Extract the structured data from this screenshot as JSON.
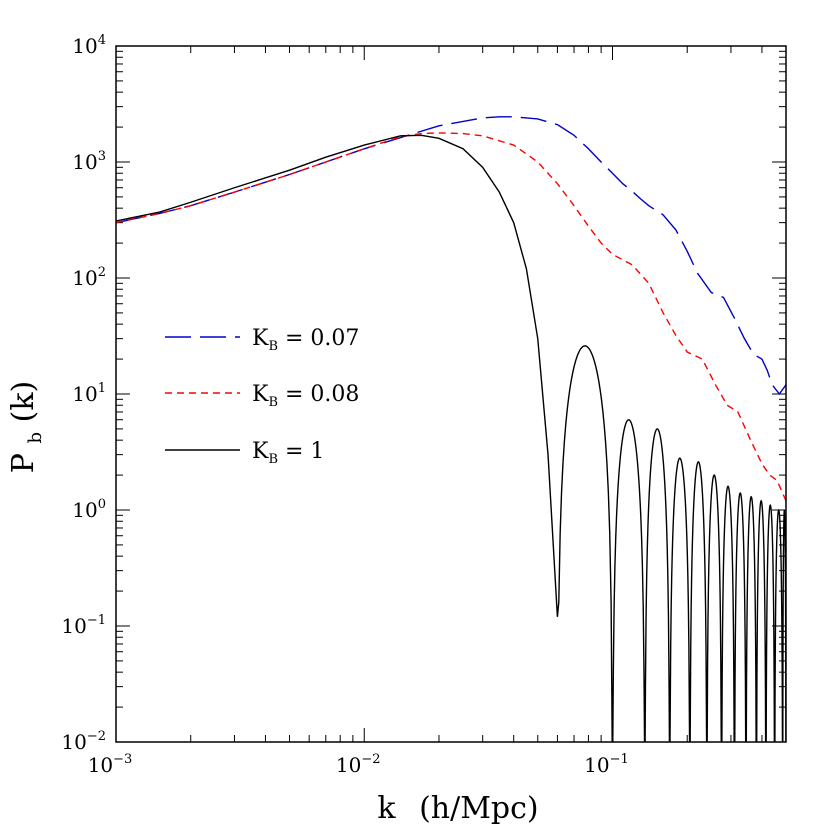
{
  "chart_data": {
    "type": "line",
    "title": "",
    "xlabel": {
      "main": "k",
      "unit": "(h/Mpc)"
    },
    "ylabel": {
      "main": "P",
      "sub": "b",
      "arg": "(k)"
    },
    "xscale": "log",
    "yscale": "log",
    "xlim": [
      0.001,
      0.5
    ],
    "ylim": [
      0.01,
      10000
    ],
    "x_ticks": [
      {
        "base": "10",
        "exp": "−3",
        "value": 0.001
      },
      {
        "base": "10",
        "exp": "−2",
        "value": 0.01
      },
      {
        "base": "10",
        "exp": "−1",
        "value": 0.1
      }
    ],
    "y_ticks": [
      {
        "base": "10",
        "exp": "−2",
        "value": 0.01
      },
      {
        "base": "10",
        "exp": "−1",
        "value": 0.1
      },
      {
        "base": "10",
        "exp": "0",
        "value": 1
      },
      {
        "base": "10",
        "exp": "1",
        "value": 10
      },
      {
        "base": "10",
        "exp": "2",
        "value": 100
      },
      {
        "base": "10",
        "exp": "3",
        "value": 1000
      },
      {
        "base": "10",
        "exp": "4",
        "value": 10000
      }
    ],
    "legend_position": "left",
    "series": [
      {
        "name": "0.07",
        "label": {
          "sym": "K",
          "sub": "B",
          "rest": " = 0.07"
        },
        "color": "#0000cc",
        "dash": "long",
        "x": [
          0.001,
          0.0015,
          0.002,
          0.003,
          0.005,
          0.007,
          0.01,
          0.015,
          0.02,
          0.03,
          0.035,
          0.04,
          0.05,
          0.06,
          0.07,
          0.08,
          0.09,
          0.1,
          0.11,
          0.12,
          0.13,
          0.14,
          0.16,
          0.18,
          0.2,
          0.22,
          0.25,
          0.28,
          0.31,
          0.34,
          0.37,
          0.4,
          0.42,
          0.44,
          0.47,
          0.5
        ],
        "y": [
          300,
          360,
          420,
          550,
          780,
          1000,
          1300,
          1700,
          2050,
          2400,
          2450,
          2450,
          2350,
          2100,
          1700,
          1300,
          1000,
          800,
          650,
          560,
          480,
          420,
          350,
          260,
          170,
          110,
          75,
          68,
          45,
          30,
          22,
          20,
          16,
          12,
          10,
          12
        ]
      },
      {
        "name": "0.08",
        "label": {
          "sym": "K",
          "sub": "B",
          "rest": " = 0.08"
        },
        "color": "#ff0000",
        "dash": "short",
        "x": [
          0.001,
          0.0015,
          0.002,
          0.003,
          0.005,
          0.007,
          0.01,
          0.014,
          0.017,
          0.02,
          0.025,
          0.03,
          0.04,
          0.05,
          0.06,
          0.07,
          0.08,
          0.09,
          0.1,
          0.12,
          0.14,
          0.16,
          0.18,
          0.2,
          0.23,
          0.26,
          0.29,
          0.32,
          0.36,
          0.4,
          0.43,
          0.46,
          0.5
        ],
        "y": [
          300,
          360,
          420,
          550,
          780,
          1000,
          1300,
          1650,
          1760,
          1780,
          1760,
          1680,
          1400,
          1000,
          650,
          420,
          280,
          200,
          160,
          130,
          90,
          50,
          32,
          23,
          20,
          12,
          8,
          7,
          4,
          2.5,
          2.0,
          1.8,
          1.2
        ]
      },
      {
        "name": "1",
        "label": {
          "sym": "K",
          "sub": "B",
          "rest": " = 1"
        },
        "color": "#000000",
        "dash": "solid",
        "x": [
          0.001,
          0.0015,
          0.002,
          0.003,
          0.005,
          0.007,
          0.01,
          0.014,
          0.017,
          0.02,
          0.025,
          0.03,
          0.035,
          0.04,
          0.045,
          0.05,
          0.055,
          0.06
        ],
        "y": [
          310,
          370,
          450,
          600,
          850,
          1100,
          1400,
          1680,
          1700,
          1600,
          1300,
          900,
          550,
          300,
          120,
          30,
          3,
          0.12
        ],
        "lobes": [
          {
            "x0": 0.06,
            "x1": 0.1,
            "peak": 26
          },
          {
            "x0": 0.1,
            "x1": 0.135,
            "peak": 6
          },
          {
            "x0": 0.135,
            "x1": 0.17,
            "peak": 5
          },
          {
            "x0": 0.17,
            "x1": 0.205,
            "peak": 2.8
          },
          {
            "x0": 0.205,
            "x1": 0.24,
            "peak": 2.6
          },
          {
            "x0": 0.24,
            "x1": 0.275,
            "peak": 2.0
          },
          {
            "x0": 0.275,
            "x1": 0.31,
            "peak": 1.6
          },
          {
            "x0": 0.31,
            "x1": 0.345,
            "peak": 1.4
          },
          {
            "x0": 0.345,
            "x1": 0.38,
            "peak": 1.3
          },
          {
            "x0": 0.38,
            "x1": 0.415,
            "peak": 1.2
          },
          {
            "x0": 0.415,
            "x1": 0.45,
            "peak": 1.1
          },
          {
            "x0": 0.45,
            "x1": 0.485,
            "peak": 1.0
          },
          {
            "x0": 0.485,
            "x1": 0.5,
            "peak": 1.0
          }
        ]
      }
    ]
  }
}
